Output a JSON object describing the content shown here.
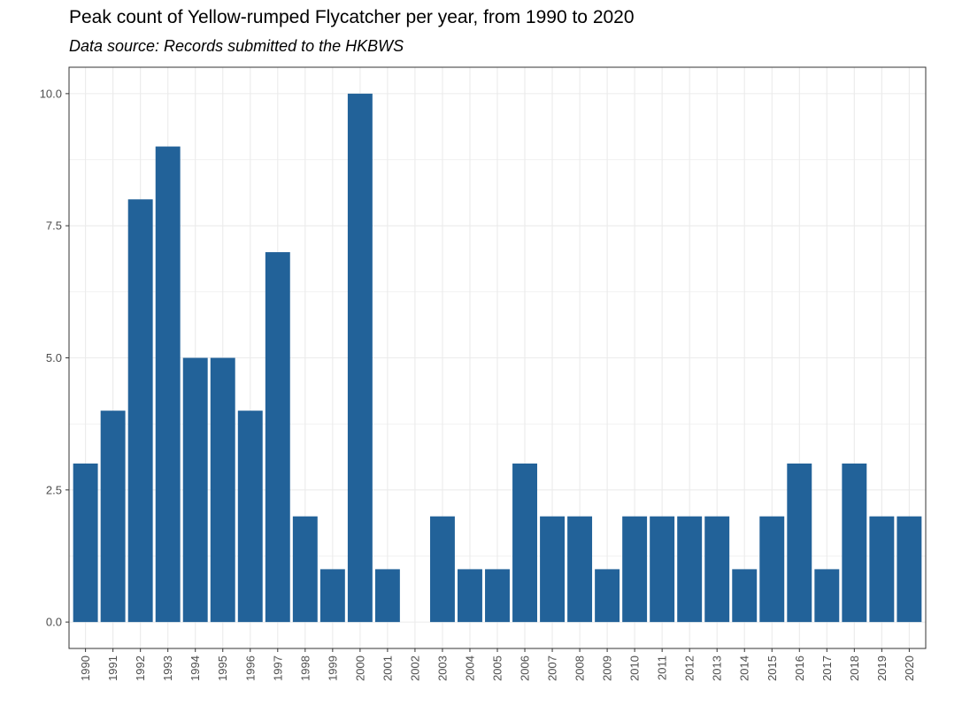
{
  "chart_data": {
    "type": "bar",
    "title": "Peak count of Yellow-rumped Flycatcher per year, from 1990 to 2020",
    "subtitle": "Data source: Records submitted to the HKBWS",
    "xlabel": "",
    "ylabel": "",
    "categories": [
      "1990",
      "1991",
      "1992",
      "1993",
      "1994",
      "1995",
      "1996",
      "1997",
      "1998",
      "1999",
      "2000",
      "2001",
      "2002",
      "2003",
      "2004",
      "2005",
      "2006",
      "2007",
      "2008",
      "2009",
      "2010",
      "2011",
      "2012",
      "2013",
      "2014",
      "2015",
      "2016",
      "2017",
      "2018",
      "2019",
      "2020"
    ],
    "values": [
      3,
      4,
      8,
      9,
      5,
      5,
      4,
      7,
      2,
      1,
      10,
      1,
      0,
      2,
      1,
      1,
      3,
      2,
      2,
      1,
      2,
      2,
      2,
      2,
      1,
      2,
      3,
      1,
      3,
      2,
      2
    ],
    "ylim": [
      -0.5,
      10.5
    ],
    "yticks": [
      "0.0",
      "2.5",
      "5.0",
      "7.5",
      "10.0"
    ],
    "grid": true,
    "legend": "none",
    "bar_color": "#226299",
    "grid_color": "#ebebeb",
    "panel_border_color": "#333333"
  }
}
